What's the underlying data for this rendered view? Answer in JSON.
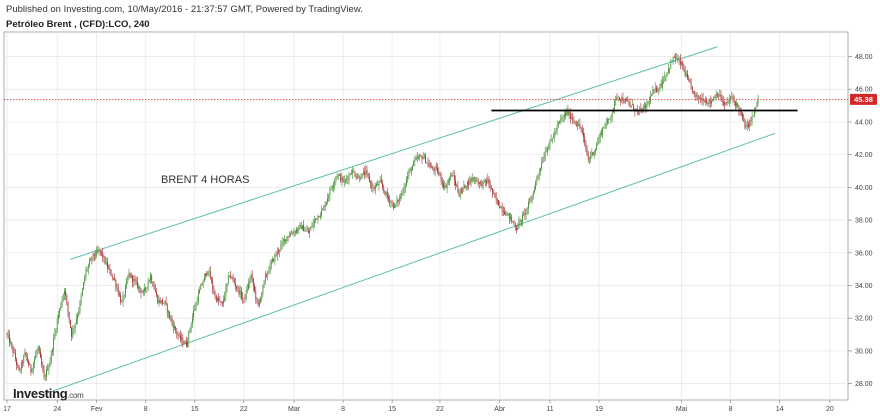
{
  "header": {
    "publish_line": "Published on Investing.com, 10/May/2016 - 21:37:57 GMT, Powered by TradingView.",
    "instrument": "Petróleo Brent , (CFD):LCO, 240"
  },
  "logo": {
    "name": "Investing",
    "suffix": ".com"
  },
  "colors": {
    "up": "#3d8b2e",
    "down": "#9e2a2a",
    "channel": "#5fbfa8",
    "level": "#000000",
    "price_line": "#d62728",
    "grid": "#e6e6e6"
  },
  "chart_data": {
    "type": "candlestick",
    "title": "",
    "y_axis": {
      "position": "right",
      "ticks": [
        "28.00",
        "30.00",
        "32.00",
        "34.00",
        "36.00",
        "38.00",
        "40.00",
        "42.00",
        "44.00",
        "46.00",
        "48.00"
      ],
      "ylim": [
        27.0,
        49.5
      ]
    },
    "x_axis": {
      "ticks": [
        {
          "label": "17",
          "i": 0
        },
        {
          "label": "24",
          "i": 42
        },
        {
          "label": "Fev",
          "i": 75
        },
        {
          "label": "8",
          "i": 116
        },
        {
          "label": "15",
          "i": 157
        },
        {
          "label": "22",
          "i": 198
        },
        {
          "label": "Mar",
          "i": 240
        },
        {
          "label": "8",
          "i": 281
        },
        {
          "label": "15",
          "i": 322
        },
        {
          "label": "22",
          "i": 362
        },
        {
          "label": "Abr",
          "i": 412
        },
        {
          "label": "11",
          "i": 454
        },
        {
          "label": "19",
          "i": 495
        },
        {
          "label": "Mai",
          "i": 564
        },
        {
          "label": "8",
          "i": 605
        },
        {
          "label": "14",
          "i": 646
        },
        {
          "label": "20",
          "i": 688
        }
      ],
      "xlim": [
        0,
        699
      ]
    },
    "current_price": {
      "value": 45.38,
      "label": "45.38"
    },
    "annotation": "BRENT 4 HORAS",
    "anchors": [
      [
        0,
        31.0
      ],
      [
        5,
        30.0
      ],
      [
        10,
        28.7
      ],
      [
        15,
        29.8
      ],
      [
        20,
        28.8
      ],
      [
        26,
        30.2
      ],
      [
        31,
        28.3
      ],
      [
        36,
        29.4
      ],
      [
        42,
        31.9
      ],
      [
        48,
        33.8
      ],
      [
        54,
        31.0
      ],
      [
        60,
        32.5
      ],
      [
        66,
        34.9
      ],
      [
        72,
        35.8
      ],
      [
        78,
        36.1
      ],
      [
        84,
        35.1
      ],
      [
        90,
        34.3
      ],
      [
        96,
        32.9
      ],
      [
        102,
        34.7
      ],
      [
        108,
        34.1
      ],
      [
        114,
        33.5
      ],
      [
        120,
        34.6
      ],
      [
        126,
        33.1
      ],
      [
        132,
        32.9
      ],
      [
        138,
        31.7
      ],
      [
        144,
        30.8
      ],
      [
        150,
        30.4
      ],
      [
        156,
        32.4
      ],
      [
        162,
        33.9
      ],
      [
        168,
        35.0
      ],
      [
        174,
        33.3
      ],
      [
        180,
        32.8
      ],
      [
        186,
        34.7
      ],
      [
        192,
        33.9
      ],
      [
        198,
        33.1
      ],
      [
        204,
        34.6
      ],
      [
        210,
        32.7
      ],
      [
        216,
        34.5
      ],
      [
        222,
        35.5
      ],
      [
        228,
        36.3
      ],
      [
        234,
        37.0
      ],
      [
        240,
        37.3
      ],
      [
        246,
        37.6
      ],
      [
        252,
        37.2
      ],
      [
        258,
        38.1
      ],
      [
        264,
        38.6
      ],
      [
        270,
        39.8
      ],
      [
        276,
        40.8
      ],
      [
        282,
        40.3
      ],
      [
        288,
        41.0
      ],
      [
        294,
        40.6
      ],
      [
        300,
        40.9
      ],
      [
        306,
        39.9
      ],
      [
        312,
        40.3
      ],
      [
        318,
        39.4
      ],
      [
        324,
        38.8
      ],
      [
        330,
        39.6
      ],
      [
        336,
        40.9
      ],
      [
        342,
        41.7
      ],
      [
        348,
        41.9
      ],
      [
        354,
        41.2
      ],
      [
        360,
        41.0
      ],
      [
        366,
        40.0
      ],
      [
        372,
        40.8
      ],
      [
        378,
        39.6
      ],
      [
        384,
        40.2
      ],
      [
        390,
        40.6
      ],
      [
        396,
        40.2
      ],
      [
        402,
        40.4
      ],
      [
        408,
        39.3
      ],
      [
        414,
        38.7
      ],
      [
        420,
        38.2
      ],
      [
        426,
        37.5
      ],
      [
        432,
        38.3
      ],
      [
        438,
        39.2
      ],
      [
        444,
        40.8
      ],
      [
        450,
        42.2
      ],
      [
        456,
        43.0
      ],
      [
        462,
        44.0
      ],
      [
        468,
        44.6
      ],
      [
        474,
        44.1
      ],
      [
        480,
        43.6
      ],
      [
        486,
        41.7
      ],
      [
        492,
        42.4
      ],
      [
        498,
        43.6
      ],
      [
        504,
        44.2
      ],
      [
        510,
        45.6
      ],
      [
        516,
        45.3
      ],
      [
        522,
        45.0
      ],
      [
        528,
        44.6
      ],
      [
        534,
        44.9
      ],
      [
        540,
        45.8
      ],
      [
        546,
        46.2
      ],
      [
        552,
        47.1
      ],
      [
        558,
        48.0
      ],
      [
        564,
        47.5
      ],
      [
        570,
        46.4
      ],
      [
        576,
        45.5
      ],
      [
        582,
        45.4
      ],
      [
        588,
        45.2
      ],
      [
        594,
        45.8
      ],
      [
        600,
        45.0
      ],
      [
        606,
        45.5
      ],
      [
        612,
        44.8
      ],
      [
        618,
        43.6
      ],
      [
        624,
        44.4
      ],
      [
        628,
        45.4
      ]
    ],
    "channel_upper": {
      "from": [
        53,
        35.6
      ],
      "to": [
        594,
        48.6
      ]
    },
    "channel_lower": {
      "from": [
        29,
        27.3
      ],
      "to": [
        642,
        43.3
      ]
    },
    "resistance_level": {
      "from": [
        405,
        44.7
      ],
      "to": [
        661,
        44.7
      ]
    }
  }
}
